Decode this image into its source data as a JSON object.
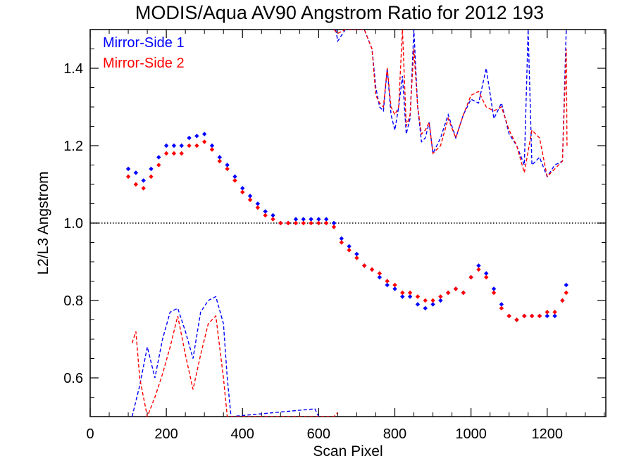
{
  "chart_data": {
    "type": "scatter",
    "title": "MODIS/Aqua AV90 Angstrom Ratio for 2012 193",
    "xlabel": "Scan Pixel",
    "ylabel": "L2/L3 Angstrom",
    "xlim": [
      0,
      1354
    ],
    "ylim": [
      0.5,
      1.5
    ],
    "x_ticks": [
      0,
      200,
      400,
      600,
      800,
      1000,
      1200
    ],
    "x_tick_labels": [
      "0",
      "200",
      "400",
      "600",
      "800",
      "1000",
      "1200"
    ],
    "x_minor_step": 50,
    "y_ticks": [
      0.6,
      0.8,
      1.0,
      1.2,
      1.4
    ],
    "y_tick_labels": [
      "0.6",
      "0.8",
      "1.0",
      "1.2",
      "1.4"
    ],
    "y_minor_step": 0.05,
    "reference_line": {
      "y": 1.0,
      "style": "dotted",
      "color": "#000000"
    },
    "legend_position": "top-left",
    "grid": false,
    "series": [
      {
        "name": "Mirror-Side 1",
        "color": "#0000ff",
        "marker": "diamond",
        "points": [
          [
            100,
            1.14
          ],
          [
            120,
            1.13
          ],
          [
            140,
            1.11
          ],
          [
            160,
            1.14
          ],
          [
            180,
            1.17
          ],
          [
            200,
            1.2
          ],
          [
            220,
            1.2
          ],
          [
            240,
            1.2
          ],
          [
            260,
            1.22
          ],
          [
            280,
            1.225
          ],
          [
            300,
            1.23
          ],
          [
            320,
            1.2
          ],
          [
            340,
            1.17
          ],
          [
            360,
            1.15
          ],
          [
            380,
            1.12
          ],
          [
            400,
            1.09
          ],
          [
            420,
            1.07
          ],
          [
            440,
            1.05
          ],
          [
            460,
            1.03
          ],
          [
            480,
            1.02
          ],
          [
            500,
            1.0
          ],
          [
            520,
            1.0
          ],
          [
            540,
            1.01
          ],
          [
            560,
            1.01
          ],
          [
            580,
            1.01
          ],
          [
            600,
            1.01
          ],
          [
            620,
            1.01
          ],
          [
            640,
            1.0
          ],
          [
            660,
            0.96
          ],
          [
            680,
            0.94
          ],
          [
            700,
            0.92
          ],
          [
            720,
            0.89
          ],
          [
            740,
            0.88
          ],
          [
            760,
            0.86
          ],
          [
            780,
            0.84
          ],
          [
            800,
            0.83
          ],
          [
            820,
            0.81
          ],
          [
            840,
            0.81
          ],
          [
            860,
            0.79
          ],
          [
            880,
            0.78
          ],
          [
            900,
            0.79
          ],
          [
            920,
            0.8
          ],
          [
            940,
            0.82
          ],
          [
            960,
            0.83
          ],
          [
            980,
            0.82
          ],
          [
            1000,
            0.86
          ],
          [
            1020,
            0.89
          ],
          [
            1040,
            0.87
          ],
          [
            1060,
            0.83
          ],
          [
            1080,
            0.79
          ],
          [
            1100,
            0.76
          ],
          [
            1120,
            0.75
          ],
          [
            1140,
            0.76
          ],
          [
            1160,
            0.76
          ],
          [
            1180,
            0.76
          ],
          [
            1200,
            0.76
          ],
          [
            1220,
            0.76
          ],
          [
            1240,
            0.8
          ],
          [
            1250,
            0.84
          ]
        ],
        "dashed_upper": [
          [
            645,
            1.5
          ],
          [
            650,
            1.47
          ],
          [
            670,
            1.5
          ],
          [
            700,
            1.5
          ],
          [
            720,
            1.5
          ],
          [
            740,
            1.45
          ],
          [
            750,
            1.35
          ],
          [
            760,
            1.3
          ],
          [
            770,
            1.29
          ],
          [
            780,
            1.4
          ],
          [
            790,
            1.28
          ],
          [
            800,
            1.24
          ],
          [
            810,
            1.3
          ],
          [
            820,
            1.38
          ],
          [
            830,
            1.23
          ],
          [
            840,
            1.27
          ],
          [
            850,
            1.5
          ],
          [
            860,
            1.3
          ],
          [
            870,
            1.21
          ],
          [
            880,
            1.22
          ],
          [
            890,
            1.26
          ],
          [
            900,
            1.18
          ],
          [
            920,
            1.22
          ],
          [
            940,
            1.28
          ],
          [
            960,
            1.22
          ],
          [
            980,
            1.28
          ],
          [
            1000,
            1.32
          ],
          [
            1020,
            1.31
          ],
          [
            1040,
            1.4
          ],
          [
            1060,
            1.27
          ],
          [
            1080,
            1.31
          ],
          [
            1100,
            1.23
          ],
          [
            1120,
            1.2
          ],
          [
            1140,
            1.15
          ],
          [
            1150,
            1.5
          ],
          [
            1160,
            1.15
          ],
          [
            1180,
            1.17
          ],
          [
            1200,
            1.12
          ],
          [
            1220,
            1.15
          ],
          [
            1240,
            1.16
          ],
          [
            1250,
            1.5
          ]
        ],
        "dashed_lower": [
          [
            110,
            0.5
          ],
          [
            130,
            0.58
          ],
          [
            150,
            0.68
          ],
          [
            170,
            0.6
          ],
          [
            190,
            0.7
          ],
          [
            210,
            0.77
          ],
          [
            230,
            0.78
          ],
          [
            250,
            0.72
          ],
          [
            270,
            0.65
          ],
          [
            290,
            0.77
          ],
          [
            310,
            0.8
          ],
          [
            330,
            0.81
          ],
          [
            350,
            0.74
          ],
          [
            360,
            0.6
          ],
          [
            370,
            0.5
          ],
          [
            590,
            0.52
          ],
          [
            600,
            0.5
          ]
        ]
      },
      {
        "name": "Mirror-Side 2",
        "color": "#ff0000",
        "marker": "diamond",
        "points": [
          [
            100,
            1.12
          ],
          [
            120,
            1.1
          ],
          [
            140,
            1.09
          ],
          [
            160,
            1.12
          ],
          [
            180,
            1.15
          ],
          [
            200,
            1.18
          ],
          [
            220,
            1.18
          ],
          [
            240,
            1.18
          ],
          [
            260,
            1.2
          ],
          [
            280,
            1.2
          ],
          [
            300,
            1.21
          ],
          [
            320,
            1.19
          ],
          [
            340,
            1.16
          ],
          [
            360,
            1.14
          ],
          [
            380,
            1.11
          ],
          [
            400,
            1.08
          ],
          [
            420,
            1.06
          ],
          [
            440,
            1.04
          ],
          [
            460,
            1.02
          ],
          [
            480,
            1.01
          ],
          [
            500,
            1.0
          ],
          [
            520,
            1.0
          ],
          [
            540,
            1.0
          ],
          [
            560,
            1.0
          ],
          [
            580,
            1.0
          ],
          [
            600,
            1.0
          ],
          [
            620,
            1.0
          ],
          [
            640,
            0.99
          ],
          [
            660,
            0.95
          ],
          [
            680,
            0.93
          ],
          [
            700,
            0.91
          ],
          [
            720,
            0.89
          ],
          [
            740,
            0.88
          ],
          [
            760,
            0.87
          ],
          [
            780,
            0.85
          ],
          [
            800,
            0.84
          ],
          [
            820,
            0.82
          ],
          [
            840,
            0.82
          ],
          [
            860,
            0.81
          ],
          [
            880,
            0.8
          ],
          [
            900,
            0.8
          ],
          [
            920,
            0.81
          ],
          [
            940,
            0.82
          ],
          [
            960,
            0.83
          ],
          [
            980,
            0.82
          ],
          [
            1000,
            0.86
          ],
          [
            1020,
            0.88
          ],
          [
            1040,
            0.86
          ],
          [
            1060,
            0.82
          ],
          [
            1080,
            0.78
          ],
          [
            1100,
            0.76
          ],
          [
            1120,
            0.75
          ],
          [
            1140,
            0.76
          ],
          [
            1160,
            0.76
          ],
          [
            1180,
            0.76
          ],
          [
            1200,
            0.77
          ],
          [
            1220,
            0.77
          ],
          [
            1240,
            0.8
          ],
          [
            1250,
            0.82
          ]
        ],
        "dashed_upper": [
          [
            640,
            1.5
          ],
          [
            650,
            1.49
          ],
          [
            670,
            1.5
          ],
          [
            700,
            1.5
          ],
          [
            720,
            1.5
          ],
          [
            740,
            1.45
          ],
          [
            750,
            1.33
          ],
          [
            760,
            1.31
          ],
          [
            770,
            1.3
          ],
          [
            780,
            1.4
          ],
          [
            790,
            1.3
          ],
          [
            800,
            1.28
          ],
          [
            810,
            1.3
          ],
          [
            820,
            1.5
          ],
          [
            830,
            1.25
          ],
          [
            840,
            1.28
          ],
          [
            850,
            1.45
          ],
          [
            860,
            1.3
          ],
          [
            870,
            1.23
          ],
          [
            880,
            1.24
          ],
          [
            890,
            1.26
          ],
          [
            900,
            1.18
          ],
          [
            920,
            1.2
          ],
          [
            940,
            1.27
          ],
          [
            960,
            1.22
          ],
          [
            980,
            1.28
          ],
          [
            1000,
            1.33
          ],
          [
            1020,
            1.34
          ],
          [
            1040,
            1.3
          ],
          [
            1060,
            1.29
          ],
          [
            1080,
            1.3
          ],
          [
            1100,
            1.24
          ],
          [
            1120,
            1.2
          ],
          [
            1140,
            1.13
          ],
          [
            1160,
            1.24
          ],
          [
            1180,
            1.22
          ],
          [
            1200,
            1.12
          ],
          [
            1220,
            1.14
          ],
          [
            1240,
            1.16
          ],
          [
            1250,
            1.45
          ],
          [
            1252,
            1.2
          ]
        ],
        "dashed_lower": [
          [
            110,
            0.69
          ],
          [
            120,
            0.72
          ],
          [
            130,
            0.6
          ],
          [
            150,
            0.5
          ],
          [
            170,
            0.55
          ],
          [
            190,
            0.61
          ],
          [
            210,
            0.68
          ],
          [
            230,
            0.76
          ],
          [
            250,
            0.66
          ],
          [
            270,
            0.57
          ],
          [
            290,
            0.66
          ],
          [
            310,
            0.74
          ],
          [
            330,
            0.76
          ],
          [
            350,
            0.6
          ],
          [
            360,
            0.5
          ],
          [
            640,
            0.5
          ],
          [
            650,
            0.51
          ]
        ]
      }
    ]
  }
}
